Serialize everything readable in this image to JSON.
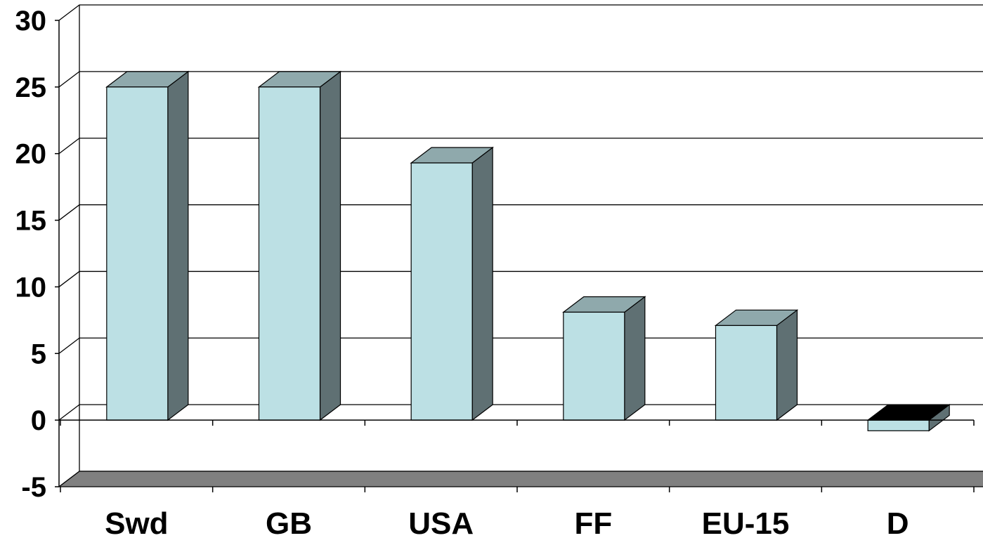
{
  "chart_data": {
    "type": "bar",
    "categories": [
      "Swd",
      "GB",
      "USA",
      "FF",
      "EU-15",
      "D"
    ],
    "values": [
      25,
      25,
      19.3,
      8.1,
      7.1,
      -0.8
    ],
    "ylim": [
      -5,
      30
    ],
    "yticks": [
      30,
      25,
      20,
      15,
      10,
      5,
      0,
      -5
    ],
    "grid": true,
    "legend": "none",
    "style": "3d-column",
    "colors": {
      "bar_front": "#BCE0E4",
      "bar_top": "#8FA9AC",
      "bar_side": "#5F7073",
      "bar_top_negative": "#000000",
      "floor": "#808080",
      "gridline": "#000000"
    }
  }
}
